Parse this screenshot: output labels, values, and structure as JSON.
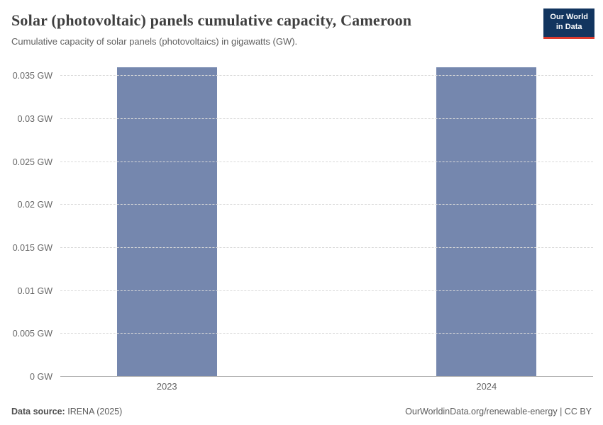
{
  "header": {
    "title": "Solar (photovoltaic) panels cumulative capacity, Cameroon",
    "subtitle": "Cumulative capacity of solar panels (photovoltaics) in gigawatts (GW)."
  },
  "logo": {
    "line1": "Our World",
    "line2": "in Data",
    "bg_color": "#12355f",
    "accent_color": "#dc3b2e"
  },
  "chart_data": {
    "type": "bar",
    "title": "Solar (photovoltaic) panels cumulative capacity, Cameroon",
    "categories": [
      "2023",
      "2024"
    ],
    "values": [
      0.036,
      0.036
    ],
    "unit": "GW",
    "xlabel": "",
    "ylabel": "",
    "ylim": [
      0,
      0.0366
    ],
    "yticks": [
      0,
      0.005,
      0.01,
      0.015,
      0.02,
      0.025,
      0.03,
      0.035
    ],
    "ytick_labels": [
      "0 GW",
      "0.005 GW",
      "0.01 GW",
      "0.015 GW",
      "0.02 GW",
      "0.025 GW",
      "0.03 GW",
      "0.035 GW"
    ],
    "grid": true,
    "legend": "none",
    "bar_color": "#7587ae"
  },
  "footer": {
    "datasource_label": "Data source:",
    "datasource_value": "IRENA (2025)",
    "link": "OurWorldinData.org/renewable-energy | CC BY"
  }
}
